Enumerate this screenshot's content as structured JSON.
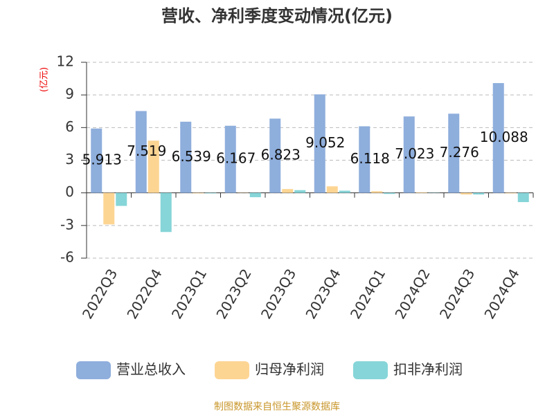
{
  "chart_data": {
    "type": "bar",
    "title": "营收、净利季度变动情况(亿元)",
    "y_axis_label": "(亿元)",
    "categories": [
      "2022Q3",
      "2022Q4",
      "2023Q1",
      "2023Q2",
      "2023Q3",
      "2023Q4",
      "2024Q1",
      "2024Q2",
      "2024Q3",
      "2024Q4"
    ],
    "series": [
      {
        "name": "营业总收入",
        "color": "#8eaedc",
        "values": [
          5.913,
          7.519,
          6.539,
          6.167,
          6.823,
          9.052,
          6.118,
          7.023,
          7.276,
          10.088
        ]
      },
      {
        "name": "归母净利润",
        "color": "#fdd593",
        "values": [
          -2.9,
          4.8,
          -0.05,
          0.02,
          0.35,
          0.6,
          0.15,
          0.05,
          -0.15,
          -0.05
        ]
      },
      {
        "name": "扣非净利润",
        "color": "#86d5d8",
        "values": [
          -1.2,
          -3.6,
          -0.05,
          -0.4,
          0.25,
          0.2,
          -0.1,
          0.02,
          -0.15,
          -0.85
        ]
      }
    ],
    "ylim": [
      -6,
      12
    ],
    "yticks": [
      -6,
      -3,
      0,
      3,
      6,
      9,
      12
    ],
    "grid": true,
    "source": "制图数据来自恒生聚源数据库"
  }
}
